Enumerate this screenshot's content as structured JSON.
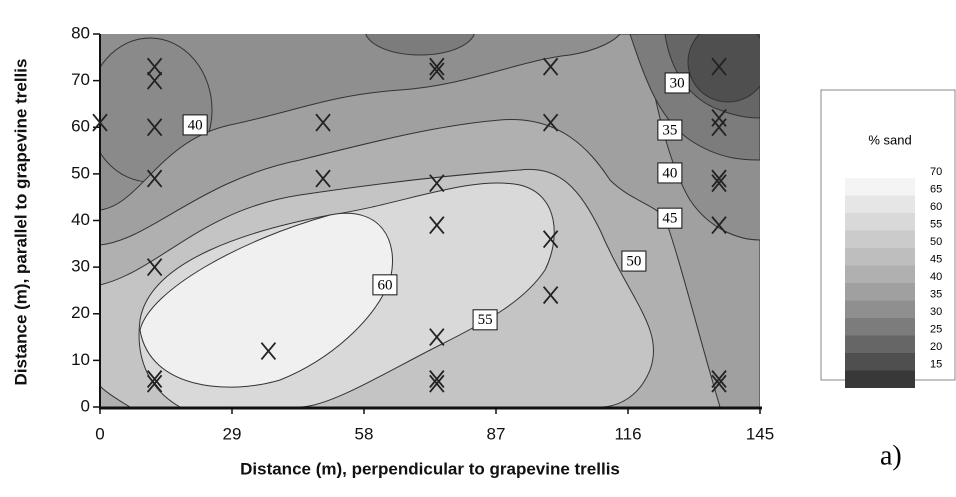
{
  "chart_data": {
    "type": "contour",
    "xlabel": "Distance (m), perpendicular to grapevine trellis",
    "ylabel": "Distance (m), parallel to grapevine trellis",
    "xlim": [
      0,
      145
    ],
    "ylim": [
      0,
      80
    ],
    "xticks": [
      0,
      29,
      58,
      87,
      116,
      145
    ],
    "yticks": [
      0,
      10,
      20,
      30,
      40,
      50,
      60,
      70,
      80
    ],
    "points": {
      "color": "#222222",
      "x": [
        0,
        12,
        12,
        12,
        12,
        12,
        12,
        12,
        37,
        49,
        49,
        74,
        74,
        74,
        74,
        74,
        74,
        74,
        99,
        99,
        99,
        99,
        136,
        136,
        136,
        136,
        136,
        136,
        136,
        136
      ],
      "y": [
        61,
        73,
        70,
        60,
        49,
        30,
        6,
        5,
        12,
        61,
        49,
        73,
        72,
        48,
        39,
        15,
        6,
        5,
        73,
        61,
        36,
        24,
        73,
        62,
        60,
        49,
        48,
        39,
        6,
        5
      ]
    },
    "contour_labels": [
      {
        "value": 40,
        "x": 20.9,
        "y": 60.5
      },
      {
        "value": 30,
        "x": 126.8,
        "y": 69.5
      },
      {
        "value": 35,
        "x": 125.2,
        "y": 59.4
      },
      {
        "value": 40,
        "x": 125.2,
        "y": 50.2
      },
      {
        "value": 45,
        "x": 125.2,
        "y": 40.5
      },
      {
        "value": 50,
        "x": 117.3,
        "y": 31.3
      },
      {
        "value": 60,
        "x": 62.6,
        "y": 26.2
      },
      {
        "value": 55,
        "x": 84.6,
        "y": 18.7
      }
    ],
    "legend": {
      "title": "% sand",
      "levels": [
        70,
        65,
        60,
        55,
        50,
        45,
        40,
        35,
        30,
        25,
        20,
        15
      ],
      "colors": [
        "#f4f4f4",
        "#e6e6e6",
        "#d9d9d9",
        "#cbcbcb",
        "#bebebe",
        "#b0b0b0",
        "#a0a0a0",
        "#8f8f8f",
        "#7c7c7c",
        "#666666",
        "#4f4f4f",
        "#383838"
      ]
    },
    "annotation": "a)"
  }
}
